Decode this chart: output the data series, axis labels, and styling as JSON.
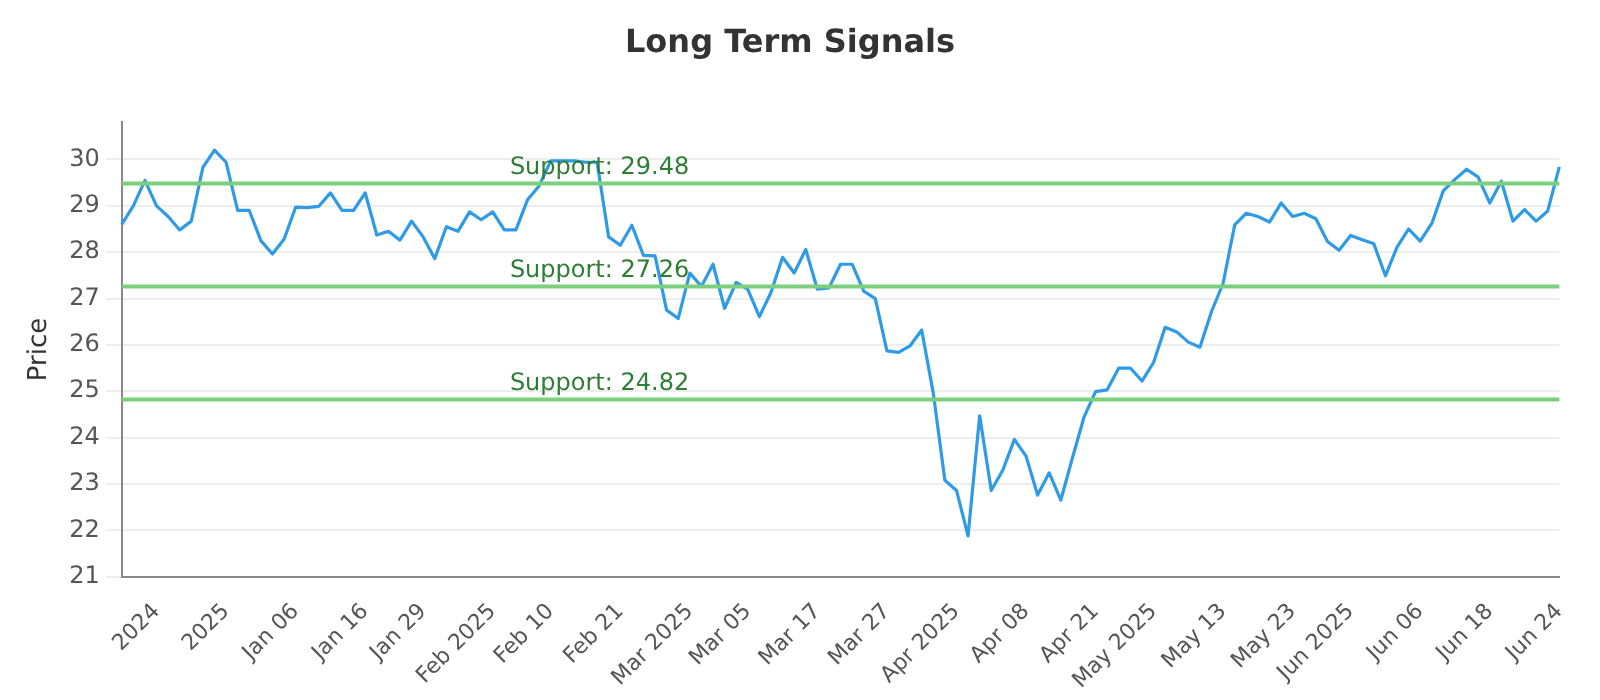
{
  "chart_data": {
    "type": "line",
    "title": "Long Term Signals",
    "ylabel": "Price",
    "categories": [
      null,
      null,
      null,
      "2024",
      null,
      null,
      null,
      null,
      null,
      "2025",
      null,
      null,
      null,
      null,
      null,
      "Jan 06",
      null,
      null,
      null,
      null,
      null,
      "Jan 16",
      null,
      null,
      null,
      null,
      "Jan 29",
      null,
      null,
      null,
      null,
      null,
      "Feb 2025",
      null,
      null,
      null,
      null,
      "Feb 10",
      null,
      null,
      null,
      null,
      null,
      "Feb 21",
      null,
      null,
      null,
      null,
      null,
      "Mar 2025",
      null,
      null,
      null,
      null,
      "Mar 05",
      null,
      null,
      null,
      null,
      null,
      "Mar 17",
      null,
      null,
      null,
      null,
      null,
      "Mar 27",
      null,
      null,
      null,
      null,
      null,
      "Apr 2025",
      null,
      null,
      null,
      null,
      null,
      "Apr 08",
      null,
      null,
      null,
      null,
      null,
      "Apr 21",
      null,
      null,
      null,
      null,
      "May 2025",
      null,
      null,
      null,
      null,
      null,
      "May 13",
      null,
      null,
      null,
      null,
      null,
      "May 23",
      null,
      null,
      null,
      null,
      "Jun 2025",
      null,
      null,
      null,
      null,
      null,
      "Jun 06",
      null,
      null,
      null,
      null,
      null,
      "Jun 18",
      null,
      null,
      null,
      null,
      null,
      "Jun 24"
    ],
    "series": [
      {
        "color": "#2f9be6",
        "values": [
          28.6,
          29.0,
          29.55,
          29.0,
          28.77,
          28.48,
          28.67,
          29.83,
          30.2,
          29.94,
          28.9,
          28.9,
          28.25,
          27.96,
          28.28,
          28.97,
          28.96,
          28.99,
          29.28,
          28.9,
          28.9,
          29.28,
          28.37,
          28.45,
          28.26,
          28.67,
          28.33,
          27.86,
          28.55,
          28.45,
          28.87,
          28.7,
          28.87,
          28.48,
          28.48,
          29.13,
          29.43,
          29.97,
          29.97,
          29.97,
          29.94,
          29.94,
          28.33,
          28.15,
          28.58,
          27.93,
          27.92,
          26.75,
          26.57,
          27.55,
          27.26,
          27.74,
          26.79,
          27.35,
          27.2,
          26.61,
          27.13,
          27.89,
          27.55,
          28.06,
          27.2,
          27.23,
          27.74,
          27.74,
          27.16,
          27.0,
          25.87,
          25.84,
          25.98,
          26.32,
          24.96,
          23.08,
          22.86,
          21.88,
          24.47,
          22.86,
          23.3,
          23.96,
          23.6,
          22.76,
          23.24,
          22.65,
          23.56,
          24.44,
          24.99,
          25.03,
          25.5,
          25.5,
          25.22,
          25.62,
          26.38,
          26.28,
          26.06,
          25.95,
          26.72,
          27.33,
          28.59,
          28.84,
          28.77,
          28.65,
          29.06,
          28.77,
          28.84,
          28.72,
          28.23,
          28.04,
          28.36,
          28.27,
          28.18,
          27.49,
          28.11,
          28.5,
          28.24,
          28.62,
          29.33,
          29.57,
          29.79,
          29.62,
          29.06,
          29.53,
          28.67,
          28.92,
          28.67,
          28.89,
          29.84
        ]
      }
    ],
    "ylim": [
      21,
      30.8
    ],
    "yticks": [
      21,
      22,
      23,
      24,
      25,
      26,
      27,
      28,
      29,
      30
    ],
    "ref_lines": [
      {
        "axis": "y",
        "value": 29.48,
        "label": "Support: 29.48",
        "color": "#7ccf7c"
      },
      {
        "axis": "y",
        "value": 27.26,
        "label": "Support: 27.26",
        "color": "#7ccf7c"
      },
      {
        "axis": "y",
        "value": 24.82,
        "label": "Support: 24.82",
        "color": "#7ccf7c"
      }
    ],
    "grid": "y",
    "legend": false,
    "marker": "none",
    "line_style": "solid"
  }
}
